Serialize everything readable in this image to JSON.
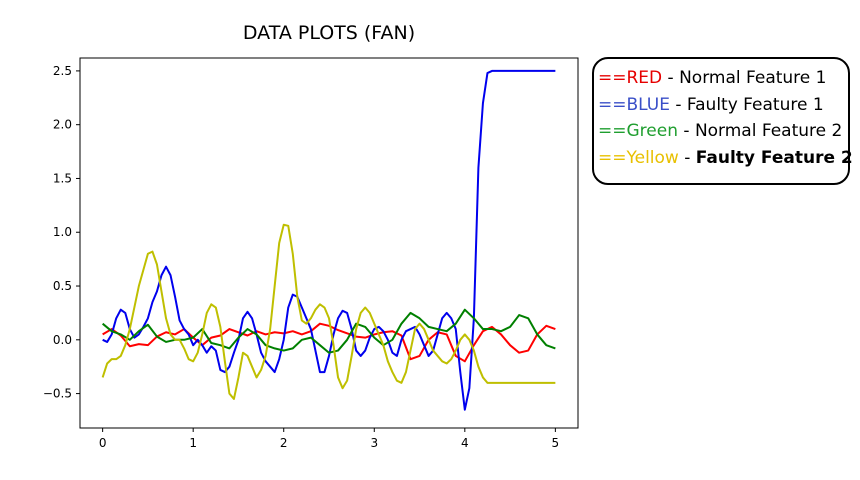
{
  "chart_data": {
    "type": "line",
    "title": "DATA PLOTS (FAN)",
    "xlabel": "",
    "ylabel": "",
    "xlim": [
      -0.25,
      5.25
    ],
    "ylim": [
      -0.82,
      2.62
    ],
    "xticks": [
      0,
      1,
      2,
      3,
      4,
      5
    ],
    "yticks": [
      -0.5,
      0.0,
      0.5,
      1.0,
      1.5,
      2.0,
      2.5
    ],
    "xtick_labels": [
      "0",
      "1",
      "2",
      "3",
      "4",
      "5"
    ],
    "ytick_labels": [
      "−0.5",
      "0.0",
      "0.5",
      "1.0",
      "1.5",
      "2.0",
      "2.5"
    ],
    "grid": false,
    "legend_placement": "outside-right",
    "series": [
      {
        "legend_key": "==RED",
        "legend_desc": "Normal Feature 1",
        "color": "#ff0000",
        "legend_color": "#e60000",
        "x": [
          0,
          0.1,
          0.2,
          0.3,
          0.4,
          0.5,
          0.6,
          0.7,
          0.8,
          0.9,
          1.0,
          1.1,
          1.2,
          1.3,
          1.4,
          1.5,
          1.6,
          1.7,
          1.8,
          1.9,
          2.0,
          2.1,
          2.2,
          2.3,
          2.4,
          2.5,
          2.6,
          2.7,
          2.8,
          2.9,
          3.0,
          3.1,
          3.2,
          3.3,
          3.4,
          3.5,
          3.6,
          3.7,
          3.8,
          3.9,
          4.0,
          4.1,
          4.2,
          4.3,
          4.4,
          4.5,
          4.6,
          4.7,
          4.8,
          4.9,
          5.0
        ],
        "y": [
          0.05,
          0.1,
          0.04,
          -0.06,
          -0.04,
          -0.05,
          0.03,
          0.07,
          0.05,
          0.1,
          0.02,
          -0.05,
          0.02,
          0.04,
          0.1,
          0.07,
          0.04,
          0.08,
          0.05,
          0.07,
          0.06,
          0.08,
          0.05,
          0.08,
          0.15,
          0.13,
          0.09,
          0.06,
          0.03,
          0.02,
          0.05,
          0.07,
          0.08,
          0.04,
          -0.18,
          -0.15,
          0.0,
          0.07,
          0.05,
          -0.15,
          -0.2,
          -0.05,
          0.08,
          0.12,
          0.05,
          -0.05,
          -0.12,
          -0.1,
          0.05,
          0.13,
          0.1
        ]
      },
      {
        "legend_key": "==BLUE",
        "legend_desc": "Faulty Feature 1",
        "color": "#0000ee",
        "legend_color": "#3a4fc8",
        "x": [
          0,
          0.05,
          0.1,
          0.15,
          0.2,
          0.25,
          0.3,
          0.35,
          0.4,
          0.45,
          0.5,
          0.55,
          0.6,
          0.65,
          0.7,
          0.75,
          0.8,
          0.85,
          0.9,
          0.95,
          1.0,
          1.05,
          1.1,
          1.15,
          1.2,
          1.25,
          1.3,
          1.35,
          1.4,
          1.45,
          1.5,
          1.55,
          1.6,
          1.65,
          1.7,
          1.75,
          1.8,
          1.85,
          1.9,
          1.95,
          2.0,
          2.05,
          2.1,
          2.15,
          2.2,
          2.25,
          2.3,
          2.35,
          2.4,
          2.45,
          2.5,
          2.55,
          2.6,
          2.65,
          2.7,
          2.75,
          2.8,
          2.85,
          2.9,
          2.95,
          3.0,
          3.05,
          3.1,
          3.15,
          3.2,
          3.25,
          3.3,
          3.35,
          3.4,
          3.45,
          3.5,
          3.55,
          3.6,
          3.65,
          3.7,
          3.75,
          3.8,
          3.85,
          3.9,
          3.95,
          4.0,
          4.05,
          4.1,
          4.15,
          4.2,
          4.25,
          4.3,
          4.35,
          4.4,
          4.45,
          4.5,
          4.55,
          4.6,
          4.65,
          4.7,
          4.75,
          4.8,
          4.85,
          4.9,
          4.95,
          5.0
        ],
        "y": [
          0.0,
          -0.02,
          0.05,
          0.2,
          0.28,
          0.25,
          0.1,
          0.02,
          0.05,
          0.12,
          0.2,
          0.35,
          0.45,
          0.6,
          0.68,
          0.6,
          0.4,
          0.18,
          0.1,
          0.05,
          -0.05,
          0.0,
          -0.05,
          -0.12,
          -0.06,
          -0.1,
          -0.28,
          -0.3,
          -0.25,
          -0.12,
          0.0,
          0.2,
          0.26,
          0.2,
          0.05,
          -0.12,
          -0.2,
          -0.25,
          -0.3,
          -0.18,
          0.0,
          0.3,
          0.42,
          0.4,
          0.3,
          0.2,
          0.1,
          -0.1,
          -0.3,
          -0.3,
          -0.15,
          0.05,
          0.2,
          0.27,
          0.25,
          0.1,
          -0.1,
          -0.15,
          -0.1,
          0.02,
          0.1,
          0.12,
          0.08,
          0.0,
          -0.12,
          -0.15,
          0.0,
          0.08,
          0.1,
          0.12,
          0.05,
          -0.05,
          -0.15,
          -0.1,
          0.05,
          0.2,
          0.25,
          0.2,
          0.1,
          -0.3,
          -0.65,
          -0.45,
          0.2,
          1.6,
          2.2,
          2.48,
          2.5,
          2.5,
          2.5,
          2.5,
          2.5,
          2.5,
          2.5,
          2.5,
          2.5,
          2.5,
          2.5,
          2.5,
          2.5,
          2.5,
          2.5
        ]
      },
      {
        "legend_key": "==Green",
        "legend_desc": "Normal Feature 2",
        "color": "#008000",
        "legend_color": "#1f9e2f",
        "x": [
          0,
          0.1,
          0.2,
          0.3,
          0.4,
          0.5,
          0.6,
          0.7,
          0.8,
          0.9,
          1.0,
          1.1,
          1.2,
          1.3,
          1.4,
          1.5,
          1.6,
          1.7,
          1.8,
          1.9,
          2.0,
          2.1,
          2.2,
          2.3,
          2.4,
          2.5,
          2.6,
          2.7,
          2.8,
          2.9,
          3.0,
          3.1,
          3.2,
          3.3,
          3.4,
          3.5,
          3.6,
          3.7,
          3.8,
          3.9,
          4.0,
          4.1,
          4.2,
          4.3,
          4.4,
          4.5,
          4.6,
          4.7,
          4.8,
          4.9,
          5.0
        ],
        "y": [
          0.15,
          0.08,
          0.05,
          0.0,
          0.08,
          0.14,
          0.03,
          -0.02,
          0.0,
          0.0,
          0.02,
          0.1,
          -0.03,
          -0.05,
          -0.08,
          0.02,
          0.1,
          0.05,
          -0.05,
          -0.08,
          -0.1,
          -0.08,
          0.0,
          0.02,
          -0.05,
          -0.12,
          -0.1,
          0.0,
          0.15,
          0.12,
          0.02,
          -0.05,
          0.0,
          0.15,
          0.25,
          0.2,
          0.12,
          0.1,
          0.08,
          0.15,
          0.28,
          0.2,
          0.1,
          0.1,
          0.08,
          0.12,
          0.23,
          0.2,
          0.05,
          -0.05,
          -0.08
        ]
      },
      {
        "legend_key": "==Yellow",
        "legend_desc": "Faulty Feature 2",
        "color": "#bfbf00",
        "legend_color": "#e8c000",
        "x": [
          0,
          0.05,
          0.1,
          0.15,
          0.2,
          0.25,
          0.3,
          0.35,
          0.4,
          0.45,
          0.5,
          0.55,
          0.6,
          0.65,
          0.7,
          0.75,
          0.8,
          0.85,
          0.9,
          0.95,
          1.0,
          1.05,
          1.1,
          1.15,
          1.2,
          1.25,
          1.3,
          1.35,
          1.4,
          1.45,
          1.5,
          1.55,
          1.6,
          1.65,
          1.7,
          1.75,
          1.8,
          1.85,
          1.9,
          1.95,
          2.0,
          2.05,
          2.1,
          2.15,
          2.2,
          2.25,
          2.3,
          2.35,
          2.4,
          2.45,
          2.5,
          2.55,
          2.6,
          2.65,
          2.7,
          2.75,
          2.8,
          2.85,
          2.9,
          2.95,
          3.0,
          3.05,
          3.1,
          3.15,
          3.2,
          3.25,
          3.3,
          3.35,
          3.4,
          3.45,
          3.5,
          3.55,
          3.6,
          3.65,
          3.7,
          3.75,
          3.8,
          3.85,
          3.9,
          3.95,
          4.0,
          4.05,
          4.1,
          4.15,
          4.2,
          4.25,
          4.3,
          4.35,
          4.4,
          4.45,
          4.5,
          4.55,
          4.6,
          4.65,
          4.7,
          4.75,
          4.8,
          4.85,
          4.9,
          4.95,
          5.0
        ],
        "y": [
          -0.35,
          -0.22,
          -0.18,
          -0.18,
          -0.15,
          -0.05,
          0.1,
          0.3,
          0.5,
          0.65,
          0.8,
          0.82,
          0.7,
          0.45,
          0.2,
          0.05,
          0.0,
          0.0,
          -0.08,
          -0.18,
          -0.2,
          -0.12,
          0.05,
          0.25,
          0.33,
          0.3,
          0.12,
          -0.2,
          -0.5,
          -0.55,
          -0.35,
          -0.12,
          -0.15,
          -0.25,
          -0.35,
          -0.28,
          -0.15,
          0.1,
          0.5,
          0.9,
          1.07,
          1.06,
          0.8,
          0.4,
          0.18,
          0.15,
          0.2,
          0.28,
          0.33,
          0.3,
          0.2,
          -0.05,
          -0.35,
          -0.45,
          -0.38,
          -0.15,
          0.1,
          0.25,
          0.3,
          0.25,
          0.15,
          0.05,
          -0.05,
          -0.2,
          -0.3,
          -0.38,
          -0.4,
          -0.3,
          -0.1,
          0.1,
          0.15,
          0.1,
          0.0,
          -0.1,
          -0.15,
          -0.2,
          -0.22,
          -0.18,
          -0.1,
          0.0,
          0.05,
          0.0,
          -0.1,
          -0.25,
          -0.35,
          -0.4,
          -0.4,
          -0.4,
          -0.4,
          -0.4,
          -0.4,
          -0.4,
          -0.4,
          -0.4,
          -0.4,
          -0.4,
          -0.4,
          -0.4,
          -0.4,
          -0.4,
          -0.4
        ]
      }
    ]
  }
}
